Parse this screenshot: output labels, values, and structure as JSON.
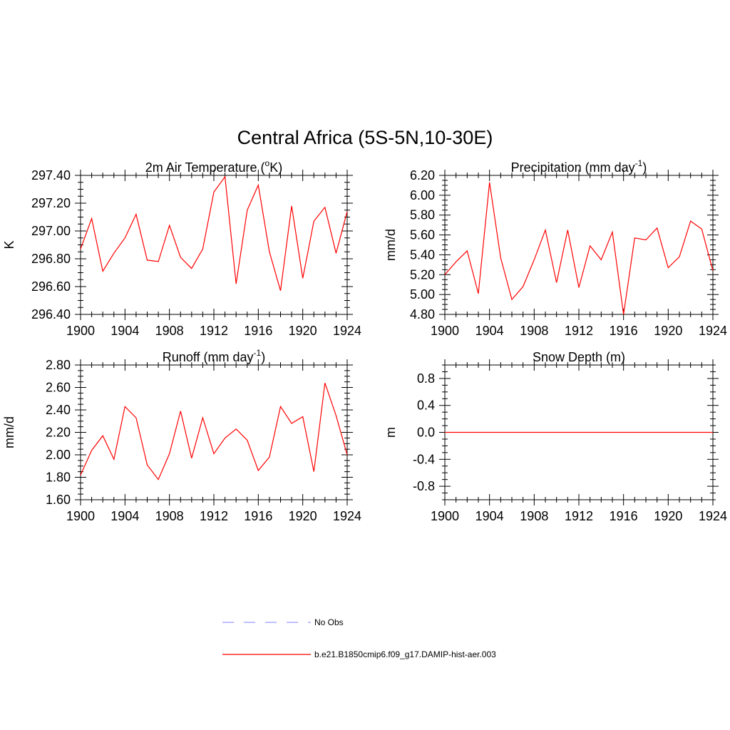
{
  "figure": {
    "title": "Central Africa (5S-5N,10-30E)"
  },
  "legend": {
    "entries": [
      {
        "label": "No Obs",
        "style": "dashed",
        "color": "#9999ff"
      },
      {
        "label": "b.e21.B1850cmip6.f09_g17.DAMIP-hist-aer.003",
        "style": "solid",
        "color": "#ff0000"
      }
    ]
  },
  "chart_data": [
    {
      "type": "line",
      "title": "2m Air Temperature (°K)",
      "ylabel": "K",
      "xlim": [
        1900,
        1924
      ],
      "ylim": [
        296.4,
        297.4
      ],
      "xticks": [
        1900,
        1904,
        1908,
        1912,
        1916,
        1920,
        1924
      ],
      "yticks": [
        "296.40",
        "296.60",
        "296.80",
        "297.00",
        "297.20",
        "297.40"
      ],
      "color": "#ff0000",
      "x": [
        1900,
        1901,
        1902,
        1903,
        1904,
        1905,
        1906,
        1907,
        1908,
        1909,
        1910,
        1911,
        1912,
        1913,
        1914,
        1915,
        1916,
        1917,
        1918,
        1919,
        1920,
        1921,
        1922,
        1923,
        1924
      ],
      "values": [
        296.87,
        297.09,
        296.71,
        296.84,
        296.95,
        297.12,
        296.79,
        296.78,
        297.04,
        296.81,
        296.73,
        296.87,
        297.28,
        297.39,
        296.62,
        297.15,
        297.33,
        296.85,
        296.57,
        297.18,
        296.66,
        297.07,
        297.17,
        296.84,
        297.14
      ]
    },
    {
      "type": "line",
      "title": "Precipitation (mm day-1)",
      "ylabel": "mm/d",
      "xlim": [
        1900,
        1924
      ],
      "ylim": [
        4.8,
        6.2
      ],
      "xticks": [
        1900,
        1904,
        1908,
        1912,
        1916,
        1920,
        1924
      ],
      "yticks": [
        "4.80",
        "5.00",
        "5.20",
        "5.40",
        "5.60",
        "5.80",
        "6.00",
        "6.20"
      ],
      "color": "#ff0000",
      "x": [
        1900,
        1901,
        1902,
        1903,
        1904,
        1905,
        1906,
        1907,
        1908,
        1909,
        1910,
        1911,
        1912,
        1913,
        1914,
        1915,
        1916,
        1917,
        1918,
        1919,
        1920,
        1921,
        1922,
        1923,
        1924
      ],
      "values": [
        5.2,
        5.33,
        5.44,
        5.01,
        6.13,
        5.37,
        4.95,
        5.08,
        5.35,
        5.65,
        5.12,
        5.65,
        5.07,
        5.49,
        5.35,
        5.63,
        4.8,
        5.57,
        5.55,
        5.67,
        5.27,
        5.38,
        5.74,
        5.66,
        5.24
      ]
    },
    {
      "type": "line",
      "title": "Runoff (mm day-1)",
      "ylabel": "mm/d",
      "xlim": [
        1900,
        1924
      ],
      "ylim": [
        1.6,
        2.8
      ],
      "xticks": [
        1900,
        1904,
        1908,
        1912,
        1916,
        1920,
        1924
      ],
      "yticks": [
        "1.60",
        "1.80",
        "2.00",
        "2.20",
        "2.40",
        "2.60",
        "2.80"
      ],
      "color": "#ff0000",
      "x": [
        1900,
        1901,
        1902,
        1903,
        1904,
        1905,
        1906,
        1907,
        1908,
        1909,
        1910,
        1911,
        1912,
        1913,
        1914,
        1915,
        1916,
        1917,
        1918,
        1919,
        1920,
        1921,
        1922,
        1923,
        1924
      ],
      "values": [
        1.82,
        2.04,
        2.17,
        1.96,
        2.43,
        2.33,
        1.91,
        1.78,
        2.01,
        2.39,
        1.97,
        2.33,
        2.01,
        2.15,
        2.23,
        2.13,
        1.86,
        1.98,
        2.43,
        2.28,
        2.34,
        1.85,
        2.64,
        2.35,
        2.0
      ]
    },
    {
      "type": "line",
      "title": "Snow Depth (m)",
      "ylabel": "m",
      "xlim": [
        1900,
        1924
      ],
      "ylim": [
        -1.0,
        1.0
      ],
      "xticks": [
        1900,
        1904,
        1908,
        1912,
        1916,
        1920,
        1924
      ],
      "yticks": [
        "-0.8",
        "-0.4",
        "0.0",
        "0.4",
        "0.8"
      ],
      "ytick_values": [
        -0.8,
        -0.4,
        0.0,
        0.4,
        0.8
      ],
      "color": "#ff0000",
      "x": [
        1900,
        1924
      ],
      "values": [
        0.0,
        0.0
      ]
    }
  ]
}
